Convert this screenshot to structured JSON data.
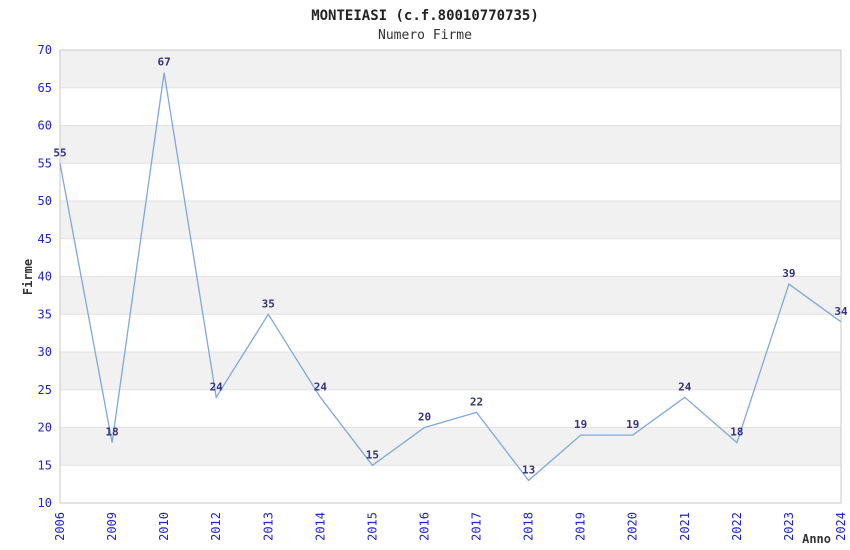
{
  "chart_data": {
    "type": "line",
    "title": "MONTEIASI (c.f.80010770735)",
    "subtitle": "Numero Firme",
    "xlabel": "Anno",
    "ylabel": "Firme",
    "categories": [
      "2006",
      "2009",
      "2010",
      "2012",
      "2013",
      "2014",
      "2015",
      "2016",
      "2017",
      "2018",
      "2019",
      "2020",
      "2021",
      "2022",
      "2023",
      "2024"
    ],
    "values": [
      55,
      18,
      67,
      24,
      35,
      24,
      15,
      20,
      22,
      13,
      19,
      19,
      24,
      18,
      39,
      34
    ],
    "point_labels": [
      "55",
      "18",
      "67",
      "24",
      "35",
      "24",
      "15",
      "20",
      "22",
      "13",
      "19",
      "19",
      "24",
      "18",
      "39",
      "34"
    ],
    "ylim": [
      10,
      70
    ],
    "ytick_step": 5,
    "y_ticks": [
      10,
      15,
      20,
      25,
      30,
      35,
      40,
      45,
      50,
      55,
      60,
      65,
      70
    ],
    "grid": "alternating horizontal bands, gray on 5-to-10 intervals",
    "legend": "none",
    "colors": {
      "line": "#7fa8dd",
      "axis_tick_label": "#2323cc",
      "data_label": "#333380",
      "band_gray": "#f1f1f1",
      "gridline": "#e2e2e2",
      "plot_border": "#c9c9c9",
      "title": "#222222",
      "axis_title": "#333333",
      "background": "#ffffff"
    }
  }
}
